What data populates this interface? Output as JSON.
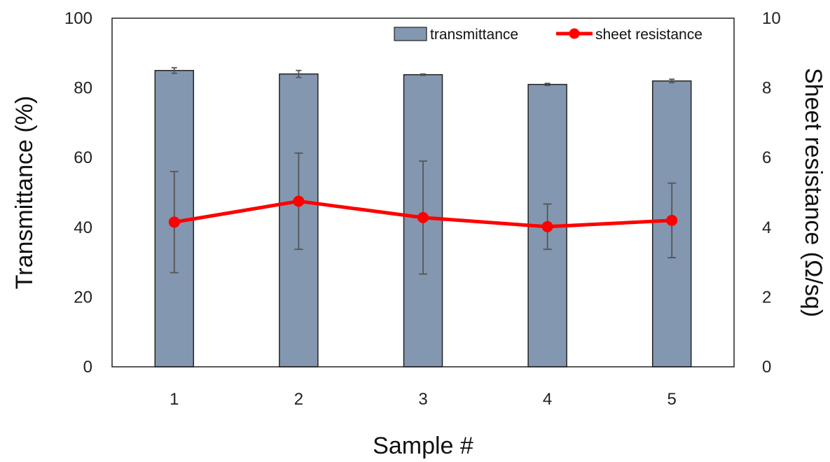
{
  "chart_data": {
    "type": "bar",
    "categories": [
      "1",
      "2",
      "3",
      "4",
      "5"
    ],
    "xlabel": "Sample #",
    "ylabel": "Transmittance  (%)",
    "y2label": "Sheet resistance  (Ω/sq)",
    "ylim": [
      0,
      100
    ],
    "y2lim": [
      0,
      10
    ],
    "yticks": [
      "0",
      "20",
      "40",
      "60",
      "80",
      "100"
    ],
    "y2ticks": [
      "0",
      "2",
      "4",
      "6",
      "8",
      "10"
    ],
    "legend_position": "top-right",
    "grid": false,
    "series": [
      {
        "name": "transmittance",
        "type": "bar",
        "axis": "left",
        "color": "#8497b0",
        "values": [
          85.0,
          84.0,
          83.8,
          81.0,
          82.0
        ],
        "errors": [
          0.8,
          1.0,
          0.2,
          0.3,
          0.5
        ]
      },
      {
        "name": "sheet resistance",
        "type": "line",
        "axis": "right",
        "color": "#ff0000",
        "values": [
          4.15,
          4.75,
          4.28,
          4.02,
          4.2
        ],
        "errors": [
          1.45,
          1.38,
          1.62,
          0.65,
          1.07
        ]
      }
    ]
  }
}
